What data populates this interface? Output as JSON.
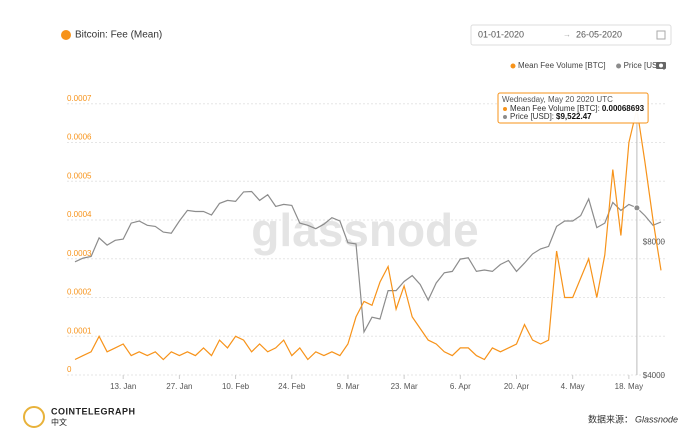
{
  "chart_data": {
    "type": "line",
    "title": "Bitcoin: Fee (Mean)",
    "date_from": "01-01-2020",
    "date_to": "26-05-2020",
    "watermark": "glassnode",
    "x": [
      "2020-01-01",
      "2020-01-03",
      "2020-01-05",
      "2020-01-07",
      "2020-01-09",
      "2020-01-11",
      "2020-01-13",
      "2020-01-15",
      "2020-01-17",
      "2020-01-19",
      "2020-01-21",
      "2020-01-23",
      "2020-01-25",
      "2020-01-27",
      "2020-01-29",
      "2020-01-31",
      "2020-02-02",
      "2020-02-04",
      "2020-02-06",
      "2020-02-08",
      "2020-02-10",
      "2020-02-12",
      "2020-02-14",
      "2020-02-16",
      "2020-02-18",
      "2020-02-20",
      "2020-02-22",
      "2020-02-24",
      "2020-02-26",
      "2020-02-28",
      "2020-03-01",
      "2020-03-03",
      "2020-03-05",
      "2020-03-07",
      "2020-03-09",
      "2020-03-11",
      "2020-03-13",
      "2020-03-15",
      "2020-03-17",
      "2020-03-19",
      "2020-03-21",
      "2020-03-23",
      "2020-03-25",
      "2020-03-27",
      "2020-03-29",
      "2020-03-31",
      "2020-04-02",
      "2020-04-04",
      "2020-04-06",
      "2020-04-08",
      "2020-04-10",
      "2020-04-12",
      "2020-04-14",
      "2020-04-16",
      "2020-04-18",
      "2020-04-20",
      "2020-04-22",
      "2020-04-24",
      "2020-04-26",
      "2020-04-28",
      "2020-04-30",
      "2020-05-02",
      "2020-05-04",
      "2020-05-06",
      "2020-05-08",
      "2020-05-10",
      "2020-05-12",
      "2020-05-14",
      "2020-05-16",
      "2020-05-18",
      "2020-05-20",
      "2020-05-22",
      "2020-05-24",
      "2020-05-26"
    ],
    "series": [
      {
        "name": "Mean Fee Volume [BTC]",
        "color": "#f7931a",
        "axis": "y",
        "values": [
          4e-05,
          5e-05,
          6e-05,
          0.0001,
          6e-05,
          7e-05,
          8e-05,
          5e-05,
          6e-05,
          5e-05,
          6e-05,
          4e-05,
          6e-05,
          5e-05,
          6e-05,
          5e-05,
          7e-05,
          5e-05,
          9e-05,
          7e-05,
          0.0001,
          9e-05,
          6e-05,
          8e-05,
          6e-05,
          7e-05,
          9e-05,
          5e-05,
          7e-05,
          4e-05,
          6e-05,
          5e-05,
          6e-05,
          5e-05,
          8e-05,
          0.00015,
          0.00019,
          0.00018,
          0.00024,
          0.00028,
          0.00017,
          0.00023,
          0.00015,
          0.00012,
          9e-05,
          8e-05,
          6e-05,
          5e-05,
          7e-05,
          7e-05,
          5e-05,
          4e-05,
          7e-05,
          6e-05,
          7e-05,
          8e-05,
          0.00013,
          9e-05,
          8e-05,
          9e-05,
          0.00032,
          0.0002,
          0.0002,
          0.00025,
          0.0003,
          0.0002,
          0.00031,
          0.00053,
          0.00036,
          0.0006,
          0.00068693,
          0.00055,
          0.0004,
          0.00027
        ]
      },
      {
        "name": "Price [USD]",
        "color": "#8c8c8c",
        "axis": "y2",
        "values": [
          7200,
          7340,
          7400,
          8150,
          7850,
          8050,
          8100,
          8800,
          8900,
          8700,
          8650,
          8400,
          8350,
          8900,
          9400,
          9350,
          9350,
          9180,
          9750,
          9900,
          9850,
          10350,
          10370,
          9900,
          10200,
          9600,
          9700,
          9650,
          8800,
          8700,
          8550,
          8750,
          9050,
          8900,
          7950,
          7900,
          5000,
          5400,
          5350,
          6200,
          6200,
          6500,
          6700,
          6400,
          5900,
          6450,
          6800,
          6850,
          7300,
          7350,
          6850,
          6900,
          6850,
          7100,
          7250,
          6850,
          7150,
          7500,
          7700,
          7800,
          8650,
          8900,
          8900,
          9150,
          9980,
          8600,
          8800,
          9800,
          9400,
          9700,
          9522.47,
          9150,
          8700,
          8850
        ]
      }
    ],
    "xlim": [
      "2019-12-30",
      "2020-05-27"
    ],
    "xticks": [
      {
        "value": "2020-01-13",
        "label": "13. Jan"
      },
      {
        "value": "2020-01-27",
        "label": "27. Jan"
      },
      {
        "value": "2020-02-10",
        "label": "10. Feb"
      },
      {
        "value": "2020-02-24",
        "label": "24. Feb"
      },
      {
        "value": "2020-03-09",
        "label": "9. Mar"
      },
      {
        "value": "2020-03-23",
        "label": "23. Mar"
      },
      {
        "value": "2020-04-06",
        "label": "6. Apr"
      },
      {
        "value": "2020-04-20",
        "label": "20. Apr"
      },
      {
        "value": "2020-05-04",
        "label": "4. May"
      },
      {
        "value": "2020-05-18",
        "label": "18. May"
      }
    ],
    "ylim": [
      0,
      0.0008
    ],
    "yticks": [
      0,
      0.0001,
      0.0002,
      0.0003,
      0.0004,
      0.0005,
      0.0006,
      0.0007
    ],
    "y2lim": [
      4000,
      20000
    ],
    "y2log": true,
    "y2ticks": [
      {
        "value": 4000,
        "label": "$4000"
      },
      {
        "value": 8000,
        "label": "$8000"
      }
    ],
    "grid": true,
    "tooltip": {
      "date": "2020-05-20",
      "title": "Wednesday, May 20 2020 UTC",
      "fee_label": "Mean Fee Volume [BTC]:",
      "fee": "0.00068693",
      "price_label": "Price [USD]:",
      "price": "$9,522.47"
    }
  },
  "footer": {
    "brand": "COINTELEGRAPH",
    "brand_sub": "中文",
    "source_label": "数据来源：",
    "source": "Glassnode"
  }
}
